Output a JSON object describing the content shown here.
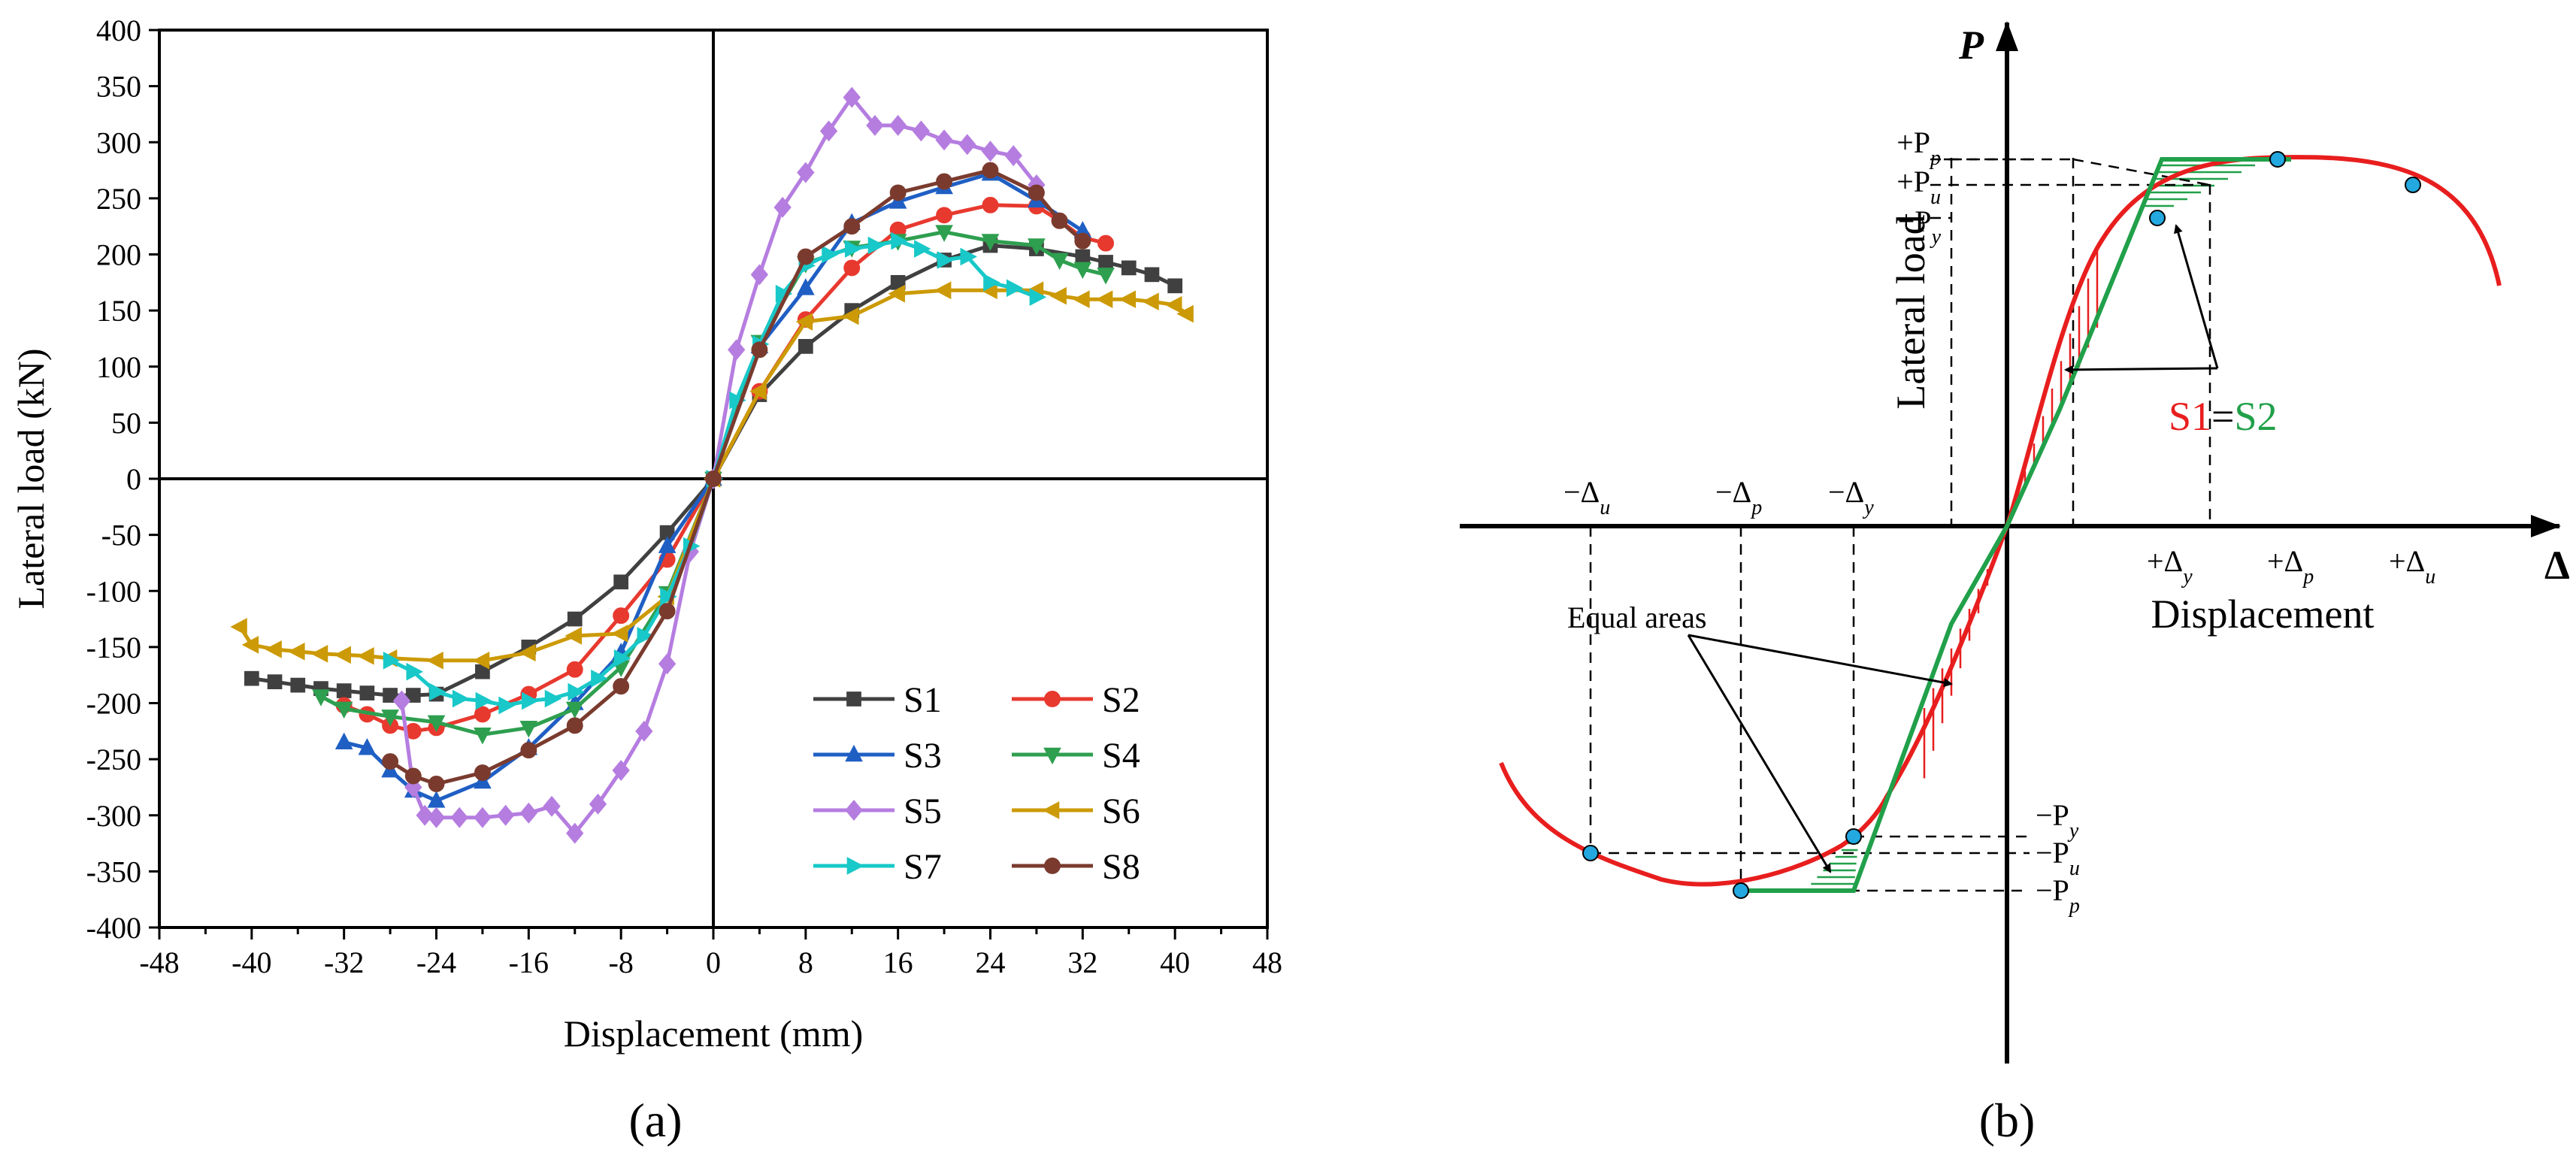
{
  "chart_data": [
    {
      "panel": "(a)",
      "type": "line",
      "xlabel": "Displacement (mm)",
      "ylabel": "Lateral load (kN)",
      "xlim": [
        -48,
        48
      ],
      "ylim": [
        -400,
        400
      ],
      "xticks": [
        -48,
        -40,
        -32,
        -24,
        -16,
        -8,
        0,
        8,
        16,
        24,
        32,
        40,
        48
      ],
      "yticks": [
        -400,
        -350,
        -300,
        -250,
        -200,
        -150,
        -100,
        -50,
        0,
        50,
        100,
        150,
        200,
        250,
        300,
        350,
        400
      ],
      "legend_position": "bottom-right",
      "series": [
        {
          "name": "S1",
          "color": "#404040",
          "marker": "square",
          "x": [
            -40,
            -38,
            -36,
            -34,
            -32,
            -30,
            -28,
            -26,
            -24,
            -20,
            -16,
            -12,
            -8,
            -4,
            0,
            4,
            8,
            12,
            16,
            20,
            24,
            28,
            32,
            34,
            36,
            38,
            40
          ],
          "y": [
            -178,
            -181,
            -184,
            -187,
            -189,
            -191,
            -193,
            -193,
            -192,
            -172,
            -150,
            -125,
            -92,
            -48,
            0,
            75,
            118,
            150,
            175,
            195,
            208,
            205,
            198,
            193,
            188,
            182,
            172
          ]
        },
        {
          "name": "S2",
          "color": "#e8392f",
          "marker": "circle",
          "x": [
            -32,
            -30,
            -28,
            -26,
            -24,
            -20,
            -16,
            -12,
            -8,
            -4,
            0,
            4,
            8,
            12,
            16,
            20,
            24,
            28,
            30,
            32,
            34
          ],
          "y": [
            -202,
            -210,
            -220,
            -225,
            -222,
            -210,
            -192,
            -170,
            -122,
            -72,
            0,
            78,
            142,
            188,
            222,
            235,
            244,
            243,
            230,
            215,
            210
          ]
        },
        {
          "name": "S3",
          "color": "#1f5fc4",
          "marker": "triangle-up",
          "x": [
            -32,
            -30,
            -28,
            -26,
            -24,
            -20,
            -16,
            -12,
            -8,
            -4,
            0,
            4,
            8,
            12,
            16,
            20,
            24,
            28,
            32
          ],
          "y": [
            -235,
            -240,
            -260,
            -278,
            -287,
            -270,
            -240,
            -200,
            -155,
            -60,
            0,
            118,
            170,
            228,
            247,
            260,
            272,
            248,
            221
          ]
        },
        {
          "name": "S4",
          "color": "#2e9f4f",
          "marker": "triangle-down",
          "x": [
            -34,
            -32,
            -28,
            -24,
            -20,
            -16,
            -12,
            -8,
            -4,
            0,
            4,
            8,
            12,
            16,
            20,
            24,
            28,
            30,
            32,
            34
          ],
          "y": [
            -194,
            -205,
            -212,
            -217,
            -228,
            -222,
            -205,
            -168,
            -102,
            0,
            122,
            192,
            206,
            212,
            220,
            212,
            208,
            195,
            187,
            182
          ]
        },
        {
          "name": "S5",
          "color": "#b57de0",
          "marker": "diamond",
          "x": [
            -27,
            -26,
            -25,
            -24,
            -22,
            -20,
            -18,
            -16,
            -14,
            -12,
            -10,
            -8,
            -6,
            -4,
            -2,
            0,
            2,
            4,
            6,
            8,
            10,
            12,
            14,
            16,
            18,
            20,
            22,
            24,
            26,
            28
          ],
          "y": [
            -198,
            -275,
            -300,
            -302,
            -302,
            -302,
            -300,
            -298,
            -292,
            -316,
            -290,
            -260,
            -225,
            -165,
            -65,
            0,
            115,
            182,
            242,
            273,
            310,
            340,
            315,
            315,
            310,
            302,
            298,
            292,
            288,
            262
          ]
        },
        {
          "name": "S6",
          "color": "#cc9a06",
          "marker": "triangle-left",
          "x": [
            -41,
            -40,
            -38,
            -36,
            -34,
            -32,
            -30,
            -28,
            -24,
            -20,
            -16,
            -12,
            -8,
            -4,
            0,
            4,
            8,
            12,
            16,
            20,
            24,
            28,
            30,
            32,
            34,
            36,
            38,
            40,
            41
          ],
          "y": [
            -132,
            -148,
            -152,
            -154,
            -156,
            -157,
            -158,
            -160,
            -162,
            -162,
            -155,
            -140,
            -138,
            -105,
            0,
            78,
            140,
            145,
            165,
            168,
            168,
            168,
            163,
            160,
            160,
            160,
            158,
            155,
            147
          ]
        },
        {
          "name": "S7",
          "color": "#19c8c8",
          "marker": "triangle-right",
          "x": [
            -28,
            -26,
            -24,
            -22,
            -20,
            -18,
            -16,
            -14,
            -12,
            -10,
            -8,
            -6,
            -4,
            -2,
            0,
            2,
            4,
            6,
            8,
            10,
            12,
            14,
            16,
            18,
            20,
            22,
            24,
            26,
            28
          ],
          "y": [
            -162,
            -172,
            -190,
            -196,
            -198,
            -202,
            -198,
            -196,
            -190,
            -178,
            -160,
            -140,
            -105,
            -60,
            0,
            70,
            120,
            165,
            190,
            200,
            205,
            208,
            212,
            205,
            195,
            198,
            175,
            170,
            162
          ]
        },
        {
          "name": "S8",
          "color": "#7a3b2e",
          "marker": "circle",
          "x": [
            -28,
            -26,
            -24,
            -20,
            -16,
            -12,
            -8,
            -4,
            0,
            4,
            8,
            12,
            16,
            20,
            24,
            28,
            30,
            32
          ],
          "y": [
            -252,
            -265,
            -272,
            -262,
            -242,
            -220,
            -185,
            -118,
            0,
            115,
            198,
            225,
            255,
            265,
            275,
            255,
            230,
            212
          ]
        }
      ]
    },
    {
      "panel": "(b)",
      "type": "line",
      "xlabel": "Displacement",
      "ylabel": "Lateral load",
      "x_axis_symbol": "Δ",
      "y_axis_symbol": "P",
      "annotation_area": "Equal areas",
      "annotation_equal_left": "S1",
      "annotation_equal_mid": "=",
      "annotation_equal_right": "S2",
      "curve_color": "#e81e1e",
      "bilinear_color": "#21a04a",
      "point_color": "#23a8e0",
      "labels": {
        "pos_dy_sign": "+Δ",
        "pos_dy_sub": "y",
        "pos_dp_sign": "+Δ",
        "pos_dp_sub": "p",
        "pos_du_sign": "+Δ",
        "pos_du_sub": "u",
        "neg_du_sign": "−Δ",
        "neg_du_sub": "u",
        "neg_dp_sign": "−Δ",
        "neg_dp_sub": "p",
        "neg_dy_sign": "−Δ",
        "neg_dy_sub": "y",
        "pos_pp_sign": "+P",
        "pos_pp_sub": "p",
        "pos_pu_sign": "+P",
        "pos_pu_sub": "u",
        "pos_py_sign": "+P",
        "pos_py_sub": "y",
        "neg_py_sign": "−P",
        "neg_py_sub": "y",
        "neg_pu_sign": "−P",
        "neg_pu_sub": "u",
        "neg_pp_sign": "−P",
        "neg_pp_sub": "p"
      }
    }
  ]
}
